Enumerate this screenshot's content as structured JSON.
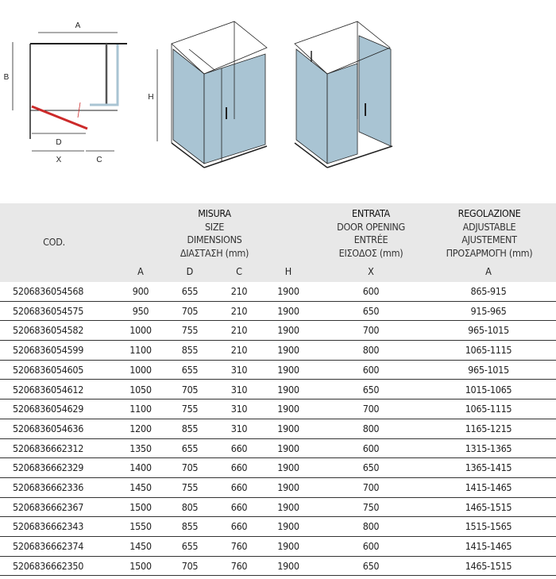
{
  "diagram_labels": {
    "a": "A",
    "b": "B",
    "d": "D",
    "x": "X",
    "c": "C",
    "h": "H"
  },
  "colors": {
    "glass": "#a9c4d3",
    "door": "#cc2a2a",
    "header_bg": "#e8e8e8"
  },
  "header": {
    "code": "COD.",
    "size": [
      "MISURA",
      "SIZE",
      "DIMENSIONS",
      "ΔΙΑΣΤΑΣΗ (mm)"
    ],
    "opening": [
      "ENTRATA",
      "DOOR OPENING",
      "ENTRÉE",
      "ΕΙΣΟΔΟΣ (mm)"
    ],
    "adjust": [
      "REGOLAZIONE",
      "ADJUSTABLE",
      "AJUSTEMENT",
      "ΠΡΟΣΑΡΜΟΓΗ (mm)"
    ],
    "sub": [
      "A",
      "D",
      "C",
      "H",
      "X",
      "A"
    ]
  },
  "rows": [
    [
      "5206836054568",
      "900",
      "655",
      "210",
      "1900",
      "600",
      "865-915"
    ],
    [
      "5206836054575",
      "950",
      "705",
      "210",
      "1900",
      "650",
      "915-965"
    ],
    [
      "5206836054582",
      "1000",
      "755",
      "210",
      "1900",
      "700",
      "965-1015"
    ],
    [
      "5206836054599",
      "1100",
      "855",
      "210",
      "1900",
      "800",
      "1065-1115"
    ],
    [
      "5206836054605",
      "1000",
      "655",
      "310",
      "1900",
      "600",
      "965-1015"
    ],
    [
      "5206836054612",
      "1050",
      "705",
      "310",
      "1900",
      "650",
      "1015-1065"
    ],
    [
      "5206836054629",
      "1100",
      "755",
      "310",
      "1900",
      "700",
      "1065-1115"
    ],
    [
      "5206836054636",
      "1200",
      "855",
      "310",
      "1900",
      "800",
      "1165-1215"
    ],
    [
      "5206836662312",
      "1350",
      "655",
      "660",
      "1900",
      "600",
      "1315-1365"
    ],
    [
      "5206836662329",
      "1400",
      "705",
      "660",
      "1900",
      "650",
      "1365-1415"
    ],
    [
      "5206836662336",
      "1450",
      "755",
      "660",
      "1900",
      "700",
      "1415-1465"
    ],
    [
      "5206836662367",
      "1500",
      "805",
      "660",
      "1900",
      "750",
      "1465-1515"
    ],
    [
      "5206836662343",
      "1550",
      "855",
      "660",
      "1900",
      "800",
      "1515-1565"
    ],
    [
      "5206836662374",
      "1450",
      "655",
      "760",
      "1900",
      "600",
      "1415-1465"
    ],
    [
      "5206836662350",
      "1500",
      "705",
      "760",
      "1900",
      "650",
      "1465-1515"
    ]
  ]
}
